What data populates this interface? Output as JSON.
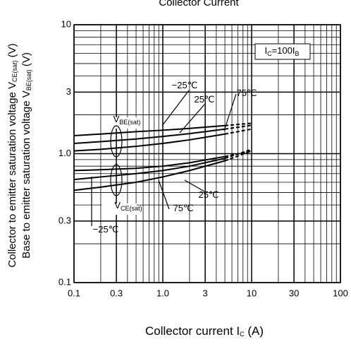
{
  "chart_data": {
    "type": "line",
    "title": "Collector Current",
    "x_label": {
      "text": "Collector current  I",
      "sub": "C",
      "unit": " (A)"
    },
    "y_label": [
      {
        "text": "Collector to emitter saturation voltage  V",
        "sub": "CE(sat)",
        "unit": " (V)"
      },
      {
        "text": "Base to emitter saturation voltage  V",
        "sub": "BE(sat)",
        "unit": " (V)"
      }
    ],
    "x": [
      0.1,
      0.2,
      0.5,
      1,
      2,
      5,
      10
    ],
    "dash_from": 5,
    "series": [
      {
        "color": "#000",
        "values": [
          1.38,
          1.42,
          1.48,
          1.52,
          1.57,
          1.65,
          1.72
        ]
      },
      {
        "color": "#000",
        "values": [
          1.2,
          1.24,
          1.3,
          1.36,
          1.43,
          1.55,
          1.66
        ]
      },
      {
        "color": "#000",
        "values": [
          1.05,
          1.08,
          1.14,
          1.2,
          1.28,
          1.42,
          1.55
        ]
      },
      {
        "color": "#000",
        "values": [
          0.74,
          0.75,
          0.77,
          0.8,
          0.85,
          0.95,
          1.05
        ]
      },
      {
        "color": "#000",
        "values": [
          0.63,
          0.66,
          0.7,
          0.74,
          0.8,
          0.92,
          1.08
        ]
      },
      {
        "color": "#000",
        "values": [
          0.52,
          0.55,
          0.6,
          0.66,
          0.74,
          0.88,
          1.05
        ]
      }
    ],
    "xlim": [
      0.1,
      100
    ],
    "ylim": [
      0.1,
      10
    ],
    "xticks": [
      0.1,
      0.3,
      {
        "value": 1,
        "label": "1.0"
      },
      3,
      10,
      30,
      100
    ],
    "yticks": [
      0.1,
      0.3,
      {
        "value": 1,
        "label": "1.0"
      },
      3,
      10
    ],
    "log_x": true,
    "log_y": true,
    "grid": true,
    "annotations": [
      {
        "text": "I",
        "sub": "C",
        "rest": "=100I",
        "sub2": "B"
      },
      {
        "text": "V",
        "sub": "BE(sat)"
      },
      {
        "text": "V",
        "sub": "CE(sat)"
      },
      {
        "text": "−25℃"
      },
      {
        "text": "25℃"
      },
      {
        "text": "75℃"
      },
      {
        "text": "25℃"
      },
      {
        "text": "75℃"
      },
      {
        "text": "−25℃"
      }
    ]
  }
}
